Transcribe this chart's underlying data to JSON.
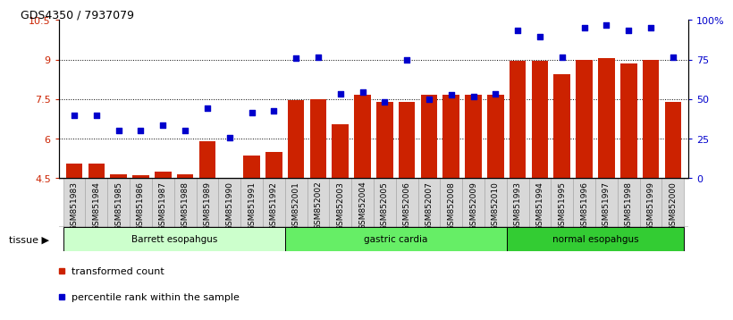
{
  "title": "GDS4350 / 7937079",
  "samples": [
    "GSM851983",
    "GSM851984",
    "GSM851985",
    "GSM851986",
    "GSM851987",
    "GSM851988",
    "GSM851989",
    "GSM851990",
    "GSM851991",
    "GSM851992",
    "GSM852001",
    "GSM852002",
    "GSM852003",
    "GSM852004",
    "GSM852005",
    "GSM852006",
    "GSM852007",
    "GSM852008",
    "GSM852009",
    "GSM852010",
    "GSM851993",
    "GSM851994",
    "GSM851995",
    "GSM851996",
    "GSM851997",
    "GSM851998",
    "GSM851999",
    "GSM852000"
  ],
  "bar_values": [
    5.05,
    5.07,
    4.65,
    4.6,
    4.75,
    4.65,
    5.9,
    4.5,
    5.35,
    5.5,
    7.45,
    7.5,
    6.55,
    7.65,
    7.4,
    7.4,
    7.65,
    7.65,
    7.65,
    7.65,
    8.95,
    8.95,
    8.45,
    9.0,
    9.05,
    8.85,
    9.0,
    7.4
  ],
  "dot_values": [
    6.9,
    6.9,
    6.3,
    6.3,
    6.5,
    6.3,
    7.15,
    6.05,
    7.0,
    7.05,
    9.05,
    9.1,
    7.7,
    7.75,
    7.4,
    9.0,
    7.5,
    7.65,
    7.6,
    7.7,
    10.1,
    9.85,
    9.1,
    10.2,
    10.3,
    10.1,
    10.2,
    9.1
  ],
  "bar_color": "#cc2200",
  "dot_color": "#0000cc",
  "ylim_left": [
    4.5,
    10.5
  ],
  "ylim_right": [
    0,
    100
  ],
  "yticks_left": [
    4.5,
    6.0,
    7.5,
    9.0,
    10.5
  ],
  "ytick_labels_left": [
    "4.5",
    "6",
    "7.5",
    "9",
    "10.5"
  ],
  "yticks_right": [
    0,
    25,
    50,
    75,
    100
  ],
  "ytick_labels_right": [
    "0",
    "25",
    "50",
    "75",
    "100%"
  ],
  "hlines": [
    6.0,
    7.5,
    9.0
  ],
  "groups": [
    {
      "label": "Barrett esopahgus",
      "start": 0,
      "end": 9,
      "color": "#ccffcc"
    },
    {
      "label": "gastric cardia",
      "start": 10,
      "end": 19,
      "color": "#66ee66"
    },
    {
      "label": "normal esopahgus",
      "start": 20,
      "end": 27,
      "color": "#33cc33"
    }
  ],
  "tissue_label": "tissue",
  "legend_bar_label": "transformed count",
  "legend_dot_label": "percentile rank within the sample",
  "background_color": "#ffffff",
  "xtick_bg": "#d8d8d8"
}
